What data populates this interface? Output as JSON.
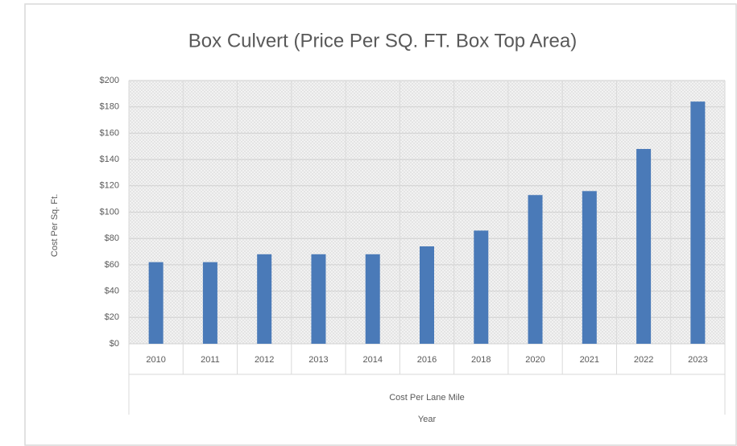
{
  "chart_data": {
    "type": "bar",
    "title": "Box Culvert (Price Per SQ. FT. Box Top Area)",
    "ylabel": "Cost Per Sq. Ft.",
    "x_group_label": "Cost Per Lane Mile",
    "xlabel": "Year",
    "categories": [
      "2010",
      "2011",
      "2012",
      "2013",
      "2014",
      "2016",
      "2018",
      "2020",
      "2021",
      "2022",
      "2023"
    ],
    "values": [
      62,
      62,
      68,
      68,
      68,
      74,
      86,
      113,
      116,
      148,
      184
    ],
    "color": "#4a7ab8",
    "ylim": [
      0,
      200
    ],
    "yticks": [
      {
        "value": 0,
        "label": "$0"
      },
      {
        "value": 20,
        "label": "$20"
      },
      {
        "value": 40,
        "label": "$40"
      },
      {
        "value": 60,
        "label": "$60"
      },
      {
        "value": 80,
        "label": "$80"
      },
      {
        "value": 100,
        "label": "$100"
      },
      {
        "value": 120,
        "label": "$120"
      },
      {
        "value": 140,
        "label": "$140"
      },
      {
        "value": 160,
        "label": "$160"
      },
      {
        "value": 180,
        "label": "$180"
      },
      {
        "value": 200,
        "label": "$200"
      }
    ],
    "grid": true
  }
}
